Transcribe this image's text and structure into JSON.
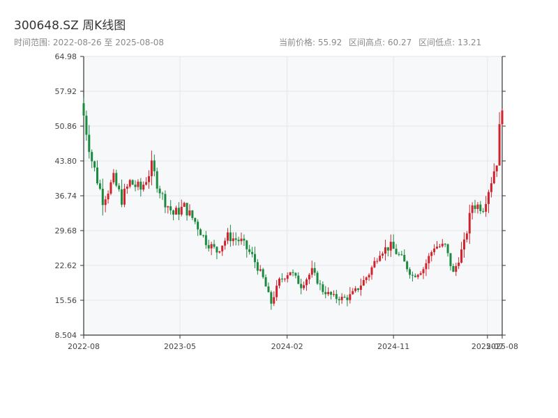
{
  "header": {
    "title": "300648.SZ 周K线图",
    "range_label": "时间范围: 2022-08-26 至 2025-08-08",
    "current_price": "当前价格: 55.92",
    "range_high": "区间高点: 60.27",
    "range_low": "区间低点: 13.21"
  },
  "colors": {
    "up": "#d0232b",
    "down": "#1a8a3f",
    "plot_bg": "#f7f8fa",
    "grid": "#e4e6ea",
    "axis": "#333333"
  },
  "chart_data": {
    "type": "candlestick",
    "title": "300648.SZ 周K线图",
    "ylim": [
      8.504,
      64.98
    ],
    "yticks": [
      "64.98",
      "57.92",
      "50.86",
      "43.80",
      "36.74",
      "29.68",
      "22.62",
      "15.56",
      "8.504"
    ],
    "xlim": [
      "2022-08-26",
      "2025-08-08"
    ],
    "xticks": [
      {
        "label": "2022-08",
        "x": "2022-08-26"
      },
      {
        "label": "2023-05",
        "x": "2023-05-01"
      },
      {
        "label": "2024-02",
        "x": "2024-02-01"
      },
      {
        "label": "2024-11",
        "x": "2024-11-01"
      },
      {
        "label": "2025-07",
        "x": "2025-07-01"
      },
      {
        "label": "2025-08",
        "x": "2025-08-08"
      }
    ],
    "grid": true,
    "close_anchors": [
      [
        "2022-08-26",
        53.0
      ],
      [
        "2022-09-16",
        44.0
      ],
      [
        "2022-10-14",
        36.0
      ],
      [
        "2022-11-11",
        40.0
      ],
      [
        "2022-12-02",
        36.0
      ],
      [
        "2022-12-23",
        39.5
      ],
      [
        "2023-01-20",
        38.0
      ],
      [
        "2023-02-17",
        42.5
      ],
      [
        "2023-03-17",
        36.5
      ],
      [
        "2023-04-14",
        33.0
      ],
      [
        "2023-05-12",
        34.5
      ],
      [
        "2023-06-09",
        31.5
      ],
      [
        "2023-07-07",
        27.5
      ],
      [
        "2023-08-04",
        25.5
      ],
      [
        "2023-09-01",
        28.5
      ],
      [
        "2023-10-06",
        27.5
      ],
      [
        "2023-11-03",
        24.5
      ],
      [
        "2023-12-01",
        20.0
      ],
      [
        "2023-12-22",
        15.0
      ],
      [
        "2024-01-12",
        19.5
      ],
      [
        "2024-02-09",
        21.5
      ],
      [
        "2024-03-08",
        18.5
      ],
      [
        "2024-04-05",
        21.5
      ],
      [
        "2024-05-03",
        17.5
      ],
      [
        "2024-06-07",
        16.0
      ],
      [
        "2024-07-05",
        16.0
      ],
      [
        "2024-08-02",
        18.0
      ],
      [
        "2024-08-30",
        21.0
      ],
      [
        "2024-09-27",
        25.5
      ],
      [
        "2024-10-25",
        26.5
      ],
      [
        "2024-11-22",
        24.0
      ],
      [
        "2024-12-20",
        20.5
      ],
      [
        "2025-01-17",
        22.0
      ],
      [
        "2025-02-14",
        26.5
      ],
      [
        "2025-03-14",
        26.5
      ],
      [
        "2025-04-04",
        21.0
      ],
      [
        "2025-05-02",
        27.0
      ],
      [
        "2025-05-23",
        35.0
      ],
      [
        "2025-06-20",
        34.5
      ],
      [
        "2025-07-11",
        40.0
      ],
      [
        "2025-07-25",
        44.0
      ],
      [
        "2025-08-08",
        55.92
      ]
    ]
  }
}
